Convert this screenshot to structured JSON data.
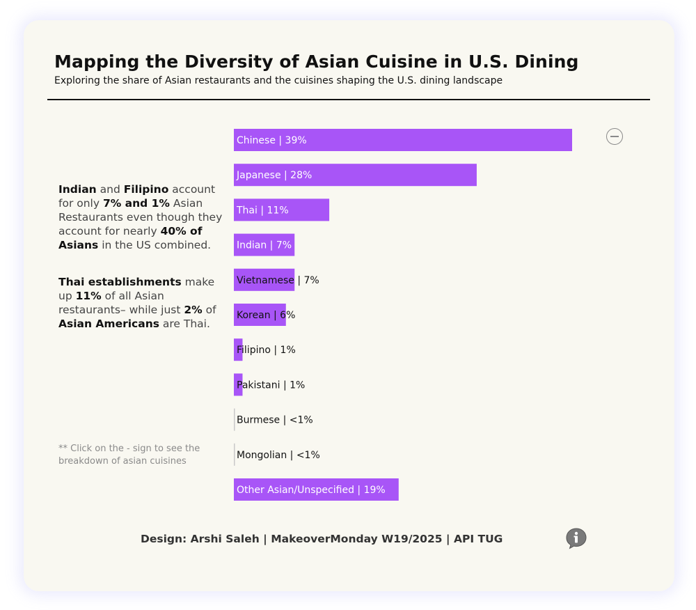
{
  "header": {
    "title": "Mapping the Diversity of Asian Cuisine in U.S. Dining",
    "subtitle": "Exploring the share of Asian restaurants and the cuisines shaping the U.S. dining landscape"
  },
  "notes": {
    "note1": {
      "p1_b": "Indian",
      "p2": " and ",
      "p3_b": "Filipino",
      "p4": " account for only ",
      "p5_b": "7% and 1%",
      "p6": " Asian Restaurants even though they account for nearly ",
      "p7_b": "40% of Asians",
      "p8": " in the US combined."
    },
    "note2": {
      "p1_b": "Thai establishments",
      "p2": " make up ",
      "p3_b": "11%",
      "p4": " of all Asian restaurants– while just ",
      "p5_b": "2%",
      "p6": " of ",
      "p7_b": "Asian Americans",
      "p8": " are Thai."
    },
    "hint": "** Click on the - sign to see the breakdown of asian cuisines"
  },
  "footer": {
    "credit": "Design: Arshi Saleh | MakeoverMonday W19/2025 | API TUG"
  },
  "icons": {
    "collapse": "minus-circle-icon",
    "info": "info-speech-bubble-icon"
  },
  "colors": {
    "bar": "#a855f7",
    "background": "#f9f8f1"
  },
  "chart_data": {
    "type": "bar",
    "orientation": "horizontal",
    "categories": [
      "Chinese",
      "Japanese",
      "Thai",
      "Indian",
      "Vietnamese",
      "Korean",
      "Filipino",
      "Pakistani",
      "Burmese",
      "Mongolian",
      "Other Asian/Unspecified"
    ],
    "values": [
      39,
      28,
      11,
      7,
      7,
      6,
      1,
      1,
      0.1,
      0.1,
      19
    ],
    "labels": [
      "Chinese | 39%",
      "Japanese | 28%",
      "Thai | 11%",
      "Indian | 7%",
      "Vietnamese | 7%",
      "Korean | 6%",
      "Filipino | 1%",
      "Pakistani | 1%",
      "Burmese | <1%",
      "Mongolian | <1%",
      "Other Asian/Unspecified | 19%"
    ],
    "xlim": [
      0,
      39
    ],
    "grid": false,
    "legend": "none"
  }
}
